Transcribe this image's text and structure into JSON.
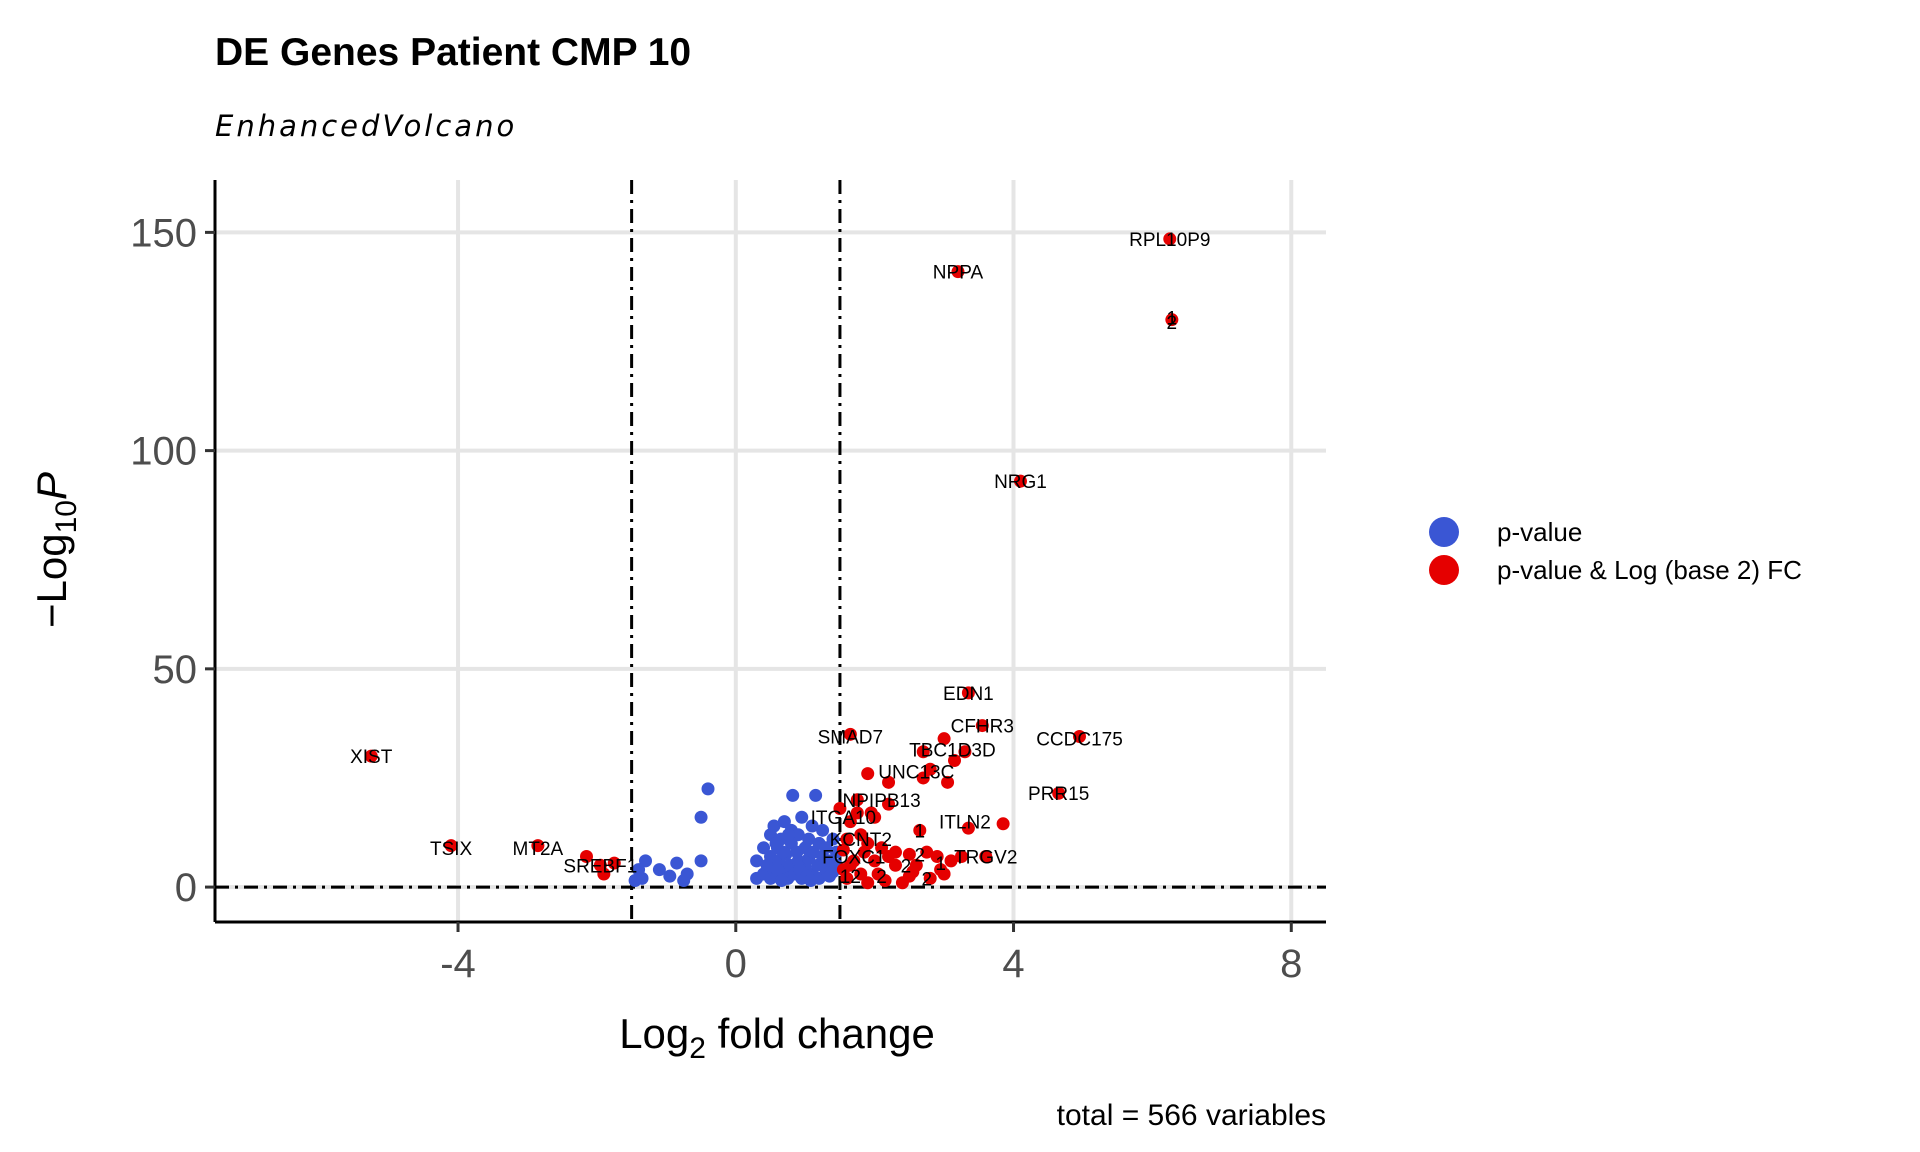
{
  "chart_data": {
    "type": "scatter",
    "title": "DE Genes Patient CMP 10",
    "subtitle": "EnhancedVolcano",
    "xlabel_base": "Log",
    "xlabel_sub": "2",
    "xlabel_rest": " fold change",
    "ylabel_prefix": "−Log",
    "ylabel_sub": "10",
    "ylabel_italic": "P",
    "caption": "total = 566 variables",
    "xlim": [
      -7.5,
      8.5
    ],
    "ylim": [
      -8,
      162
    ],
    "x_ticks": [
      -4,
      0,
      4,
      8
    ],
    "x_tick_labels": [
      "-4",
      "0",
      "4",
      "8"
    ],
    "y_ticks": [
      0,
      50,
      100,
      150
    ],
    "y_tick_labels": [
      "0",
      "50",
      "100",
      "150"
    ],
    "grid": true,
    "cutoffs": {
      "fc": [
        -1.5,
        1.5
      ],
      "p": 0
    },
    "legend_position": "right",
    "legend": [
      {
        "name": "p-value",
        "color": "#3a56d4"
      },
      {
        "name": "p-value & Log (base 2) FC",
        "color": "#e50000"
      }
    ],
    "series": [
      {
        "name": "p-value",
        "color": "#3a56d4",
        "points": [
          [
            -0.4,
            22.5
          ],
          [
            -0.5,
            16
          ],
          [
            -0.5,
            6
          ],
          [
            -0.7,
            3
          ],
          [
            -0.75,
            1.5
          ],
          [
            -0.85,
            5.5
          ],
          [
            -0.95,
            2.5
          ],
          [
            -1.1,
            4
          ],
          [
            -1.3,
            6
          ],
          [
            -1.35,
            2
          ],
          [
            -1.4,
            4
          ],
          [
            -1.45,
            1.5
          ],
          [
            0.3,
            2
          ],
          [
            0.3,
            6
          ],
          [
            0.4,
            3
          ],
          [
            0.4,
            9
          ],
          [
            0.45,
            5
          ],
          [
            0.5,
            2
          ],
          [
            0.5,
            12
          ],
          [
            0.5,
            7
          ],
          [
            0.55,
            4
          ],
          [
            0.55,
            14
          ],
          [
            0.6,
            2.5
          ],
          [
            0.6,
            9
          ],
          [
            0.62,
            6
          ],
          [
            0.65,
            11
          ],
          [
            0.7,
            3.5
          ],
          [
            0.7,
            15
          ],
          [
            0.72,
            7.5
          ],
          [
            0.75,
            2
          ],
          [
            0.78,
            5
          ],
          [
            0.8,
            10
          ],
          [
            0.8,
            13
          ],
          [
            0.82,
            21
          ],
          [
            0.85,
            3
          ],
          [
            0.88,
            8
          ],
          [
            0.9,
            6
          ],
          [
            0.9,
            12
          ],
          [
            0.95,
            2
          ],
          [
            0.95,
            16
          ],
          [
            1.0,
            4.5
          ],
          [
            1.0,
            9
          ],
          [
            1.05,
            11
          ],
          [
            1.05,
            6.5
          ],
          [
            1.1,
            3
          ],
          [
            1.1,
            14
          ],
          [
            1.12,
            8
          ],
          [
            1.15,
            21
          ],
          [
            1.18,
            5
          ],
          [
            1.2,
            2
          ],
          [
            1.2,
            10
          ],
          [
            1.25,
            7
          ],
          [
            1.25,
            13
          ],
          [
            1.3,
            4
          ],
          [
            1.3,
            9
          ],
          [
            1.35,
            2.5
          ],
          [
            1.35,
            6
          ],
          [
            1.4,
            11
          ],
          [
            1.4,
            3.5
          ],
          [
            1.45,
            5
          ],
          [
            1.45,
            8
          ],
          [
            0.6,
            4
          ],
          [
            0.68,
            8
          ],
          [
            0.76,
            12
          ],
          [
            0.92,
            4
          ],
          [
            1.02,
            2.5
          ],
          [
            0.58,
            10
          ],
          [
            0.66,
            1.5
          ],
          [
            1.08,
            1.5
          ]
        ]
      },
      {
        "name": "p-value & Log (base 2) FC",
        "color": "#e50000",
        "points": [
          [
            6.25,
            148.5
          ],
          [
            3.2,
            141
          ],
          [
            6.28,
            130
          ],
          [
            4.1,
            93
          ],
          [
            3.35,
            44.5
          ],
          [
            3.55,
            37
          ],
          [
            3.0,
            34
          ],
          [
            1.65,
            35
          ],
          [
            4.95,
            34.5
          ],
          [
            2.7,
            31
          ],
          [
            3.3,
            31
          ],
          [
            3.15,
            29
          ],
          [
            1.9,
            26
          ],
          [
            2.8,
            27
          ],
          [
            3.05,
            24
          ],
          [
            2.2,
            24
          ],
          [
            2.7,
            25
          ],
          [
            4.65,
            21.5
          ],
          [
            1.75,
            20
          ],
          [
            2.2,
            19
          ],
          [
            1.5,
            18
          ],
          [
            1.75,
            17
          ],
          [
            1.95,
            17
          ],
          [
            2.0,
            16
          ],
          [
            1.65,
            15
          ],
          [
            3.85,
            14.5
          ],
          [
            3.35,
            13.5
          ],
          [
            2.65,
            13
          ],
          [
            1.8,
            12
          ],
          [
            1.6,
            11
          ],
          [
            1.9,
            10
          ],
          [
            2.1,
            9
          ],
          [
            1.55,
            8.5
          ],
          [
            1.85,
            8
          ],
          [
            2.3,
            8
          ],
          [
            2.5,
            7.5
          ],
          [
            2.9,
            7
          ],
          [
            3.25,
            7
          ],
          [
            3.6,
            7
          ],
          [
            1.7,
            6
          ],
          [
            2.0,
            6
          ],
          [
            2.3,
            5
          ],
          [
            2.6,
            5
          ],
          [
            2.95,
            4
          ],
          [
            1.55,
            4
          ],
          [
            1.8,
            3
          ],
          [
            2.05,
            3
          ],
          [
            2.5,
            2.5
          ],
          [
            2.8,
            2
          ],
          [
            3.0,
            3
          ],
          [
            1.6,
            2
          ],
          [
            2.15,
            1.5
          ],
          [
            1.9,
            1
          ],
          [
            2.4,
            1
          ],
          [
            3.1,
            6
          ],
          [
            2.75,
            8
          ],
          [
            1.65,
            5
          ],
          [
            2.2,
            7
          ],
          [
            2.55,
            3.5
          ],
          [
            -5.25,
            30
          ],
          [
            -4.1,
            9.5
          ],
          [
            -2.85,
            9.5
          ],
          [
            -2.15,
            7
          ],
          [
            -1.95,
            5
          ],
          [
            -1.9,
            3
          ],
          [
            -1.75,
            5.5
          ]
        ]
      }
    ],
    "annotations": [
      {
        "text": "RPL10P9",
        "x": 6.25,
        "y": 148.5
      },
      {
        "text": "NPPA",
        "x": 3.2,
        "y": 141
      },
      {
        "text": "2",
        "x": 6.28,
        "y": 129.5
      },
      {
        "text": "1",
        "x": 6.28,
        "y": 130.5
      },
      {
        "text": "NRG1",
        "x": 4.1,
        "y": 93
      },
      {
        "text": "EDN1",
        "x": 3.35,
        "y": 44.5
      },
      {
        "text": "CFHR3",
        "x": 3.55,
        "y": 37
      },
      {
        "text": "SMAD7",
        "x": 1.65,
        "y": 34.5
      },
      {
        "text": "CCDC175",
        "x": 4.95,
        "y": 34
      },
      {
        "text": "TBC1D3D",
        "x": 3.12,
        "y": 31.5
      },
      {
        "text": "XIST",
        "x": -5.25,
        "y": 30
      },
      {
        "text": "UNC13C",
        "x": 2.6,
        "y": 26.5
      },
      {
        "text": "PRR15",
        "x": 4.65,
        "y": 21.5
      },
      {
        "text": "NPIPB13",
        "x": 2.1,
        "y": 20
      },
      {
        "text": "ITGA10",
        "x": 1.55,
        "y": 16
      },
      {
        "text": "ITLN2",
        "x": 3.3,
        "y": 15
      },
      {
        "text": "1",
        "x": 2.65,
        "y": 13
      },
      {
        "text": "KCNT2",
        "x": 1.8,
        "y": 11
      },
      {
        "text": "TSIX",
        "x": -4.1,
        "y": 9
      },
      {
        "text": "MT2A",
        "x": -2.85,
        "y": 9
      },
      {
        "text": "FOXC1",
        "x": 1.7,
        "y": 7
      },
      {
        "text": "2",
        "x": 2.65,
        "y": 7.5
      },
      {
        "text": "TRGV2",
        "x": 3.6,
        "y": 7
      },
      {
        "text": "2",
        "x": 2.45,
        "y": 5
      },
      {
        "text": "1",
        "x": 2.95,
        "y": 5.5
      },
      {
        "text": "SREBF1",
        "x": -1.95,
        "y": 5
      },
      {
        "text": "12",
        "x": 1.65,
        "y": 2.5
      },
      {
        "text": "2",
        "x": 2.1,
        "y": 2.5
      },
      {
        "text": "2",
        "x": 2.75,
        "y": 2
      }
    ]
  }
}
